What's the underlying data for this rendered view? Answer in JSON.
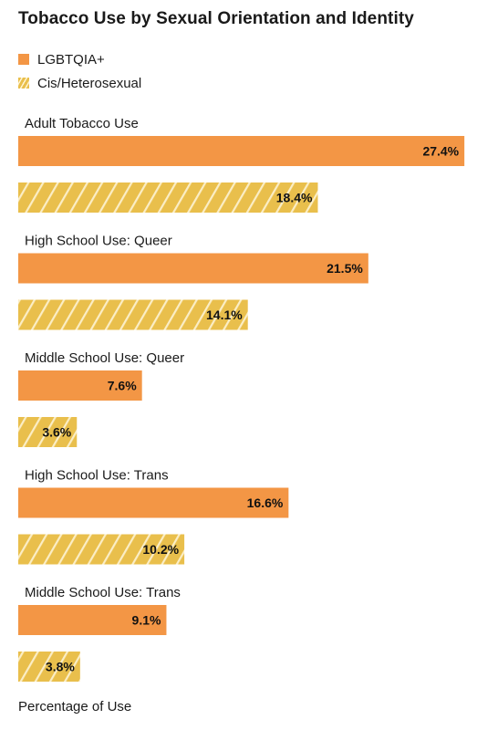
{
  "chart_data": {
    "type": "bar",
    "orientation": "horizontal",
    "title": "Tobacco Use by Sexual Orientation and Identity",
    "categories": [
      "Adult Tobacco Use",
      "High School Use: Queer",
      "Middle School Use: Queer",
      "High School Use: Trans",
      "Middle School Use: Trans"
    ],
    "series": [
      {
        "name": "LGBTQIA+",
        "color": "#f39645",
        "pattern": "solid",
        "values": [
          27.4,
          21.5,
          7.6,
          16.6,
          9.1
        ],
        "value_labels": [
          "27.4%",
          "21.5%",
          "7.6%",
          "16.6%",
          "9.1%"
        ]
      },
      {
        "name": "Cis/Heterosexual",
        "color": "#e9bf4c",
        "pattern": "diagonal-stripes",
        "values": [
          18.4,
          14.1,
          3.6,
          10.2,
          3.8
        ],
        "value_labels": [
          "18.4%",
          "14.1%",
          "3.6%",
          "10.2%",
          "3.8%"
        ]
      }
    ],
    "xlabel": "Percentage of Use",
    "xlim": [
      0,
      28.4
    ],
    "legend_position": "top-left",
    "grid": false
  }
}
